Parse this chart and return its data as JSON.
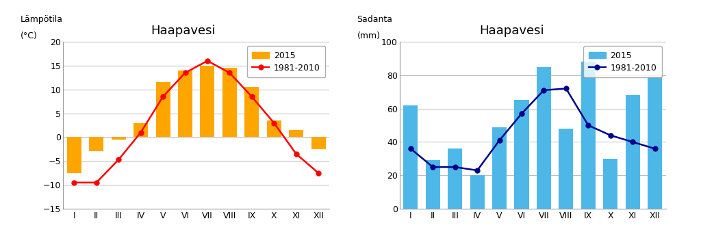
{
  "months": [
    "I",
    "II",
    "III",
    "IV",
    "V",
    "VI",
    "VII",
    "VIII",
    "IX",
    "X",
    "XI",
    "XII"
  ],
  "temp_2015": [
    -7.5,
    -3.0,
    -0.5,
    3.0,
    11.5,
    14.0,
    15.0,
    14.5,
    10.5,
    3.5,
    1.5,
    -2.5
  ],
  "temp_ref": [
    -9.5,
    -9.5,
    -4.7,
    1.0,
    8.5,
    13.5,
    16.0,
    13.5,
    8.5,
    3.0,
    -3.5,
    -7.5
  ],
  "prec_2015": [
    62,
    29,
    36,
    20,
    49,
    65,
    85,
    48,
    88,
    30,
    68,
    79
  ],
  "prec_ref": [
    36,
    25,
    25,
    23,
    41,
    57,
    71,
    72,
    50,
    44,
    40,
    36
  ],
  "temp_bar_color": "#FFA500",
  "temp_line_color": "#FF0000",
  "prec_bar_color": "#4DB8E8",
  "prec_line_color": "#00008B",
  "left_title": "Haapavesi",
  "right_title": "Haapavesi",
  "left_ylabel_line1": "Lämpötila",
  "left_ylabel_line2": "(°C)",
  "right_ylabel_line1": "Sadanta",
  "right_ylabel_line2": "(mm)",
  "legend_2015": "2015",
  "legend_ref": "1981-2010",
  "temp_ylim": [
    -15,
    20
  ],
  "temp_yticks": [
    -15,
    -10,
    -5,
    0,
    5,
    10,
    15,
    20
  ],
  "prec_ylim": [
    0,
    100
  ],
  "prec_yticks": [
    0,
    20,
    40,
    60,
    80,
    100
  ],
  "background_color": "#FFFFFF",
  "grid_color": "#BBBBBB",
  "title_fontsize": 13,
  "axis_label_fontsize": 9,
  "tick_fontsize": 9,
  "legend_fontsize": 9,
  "bar_width": 0.65
}
